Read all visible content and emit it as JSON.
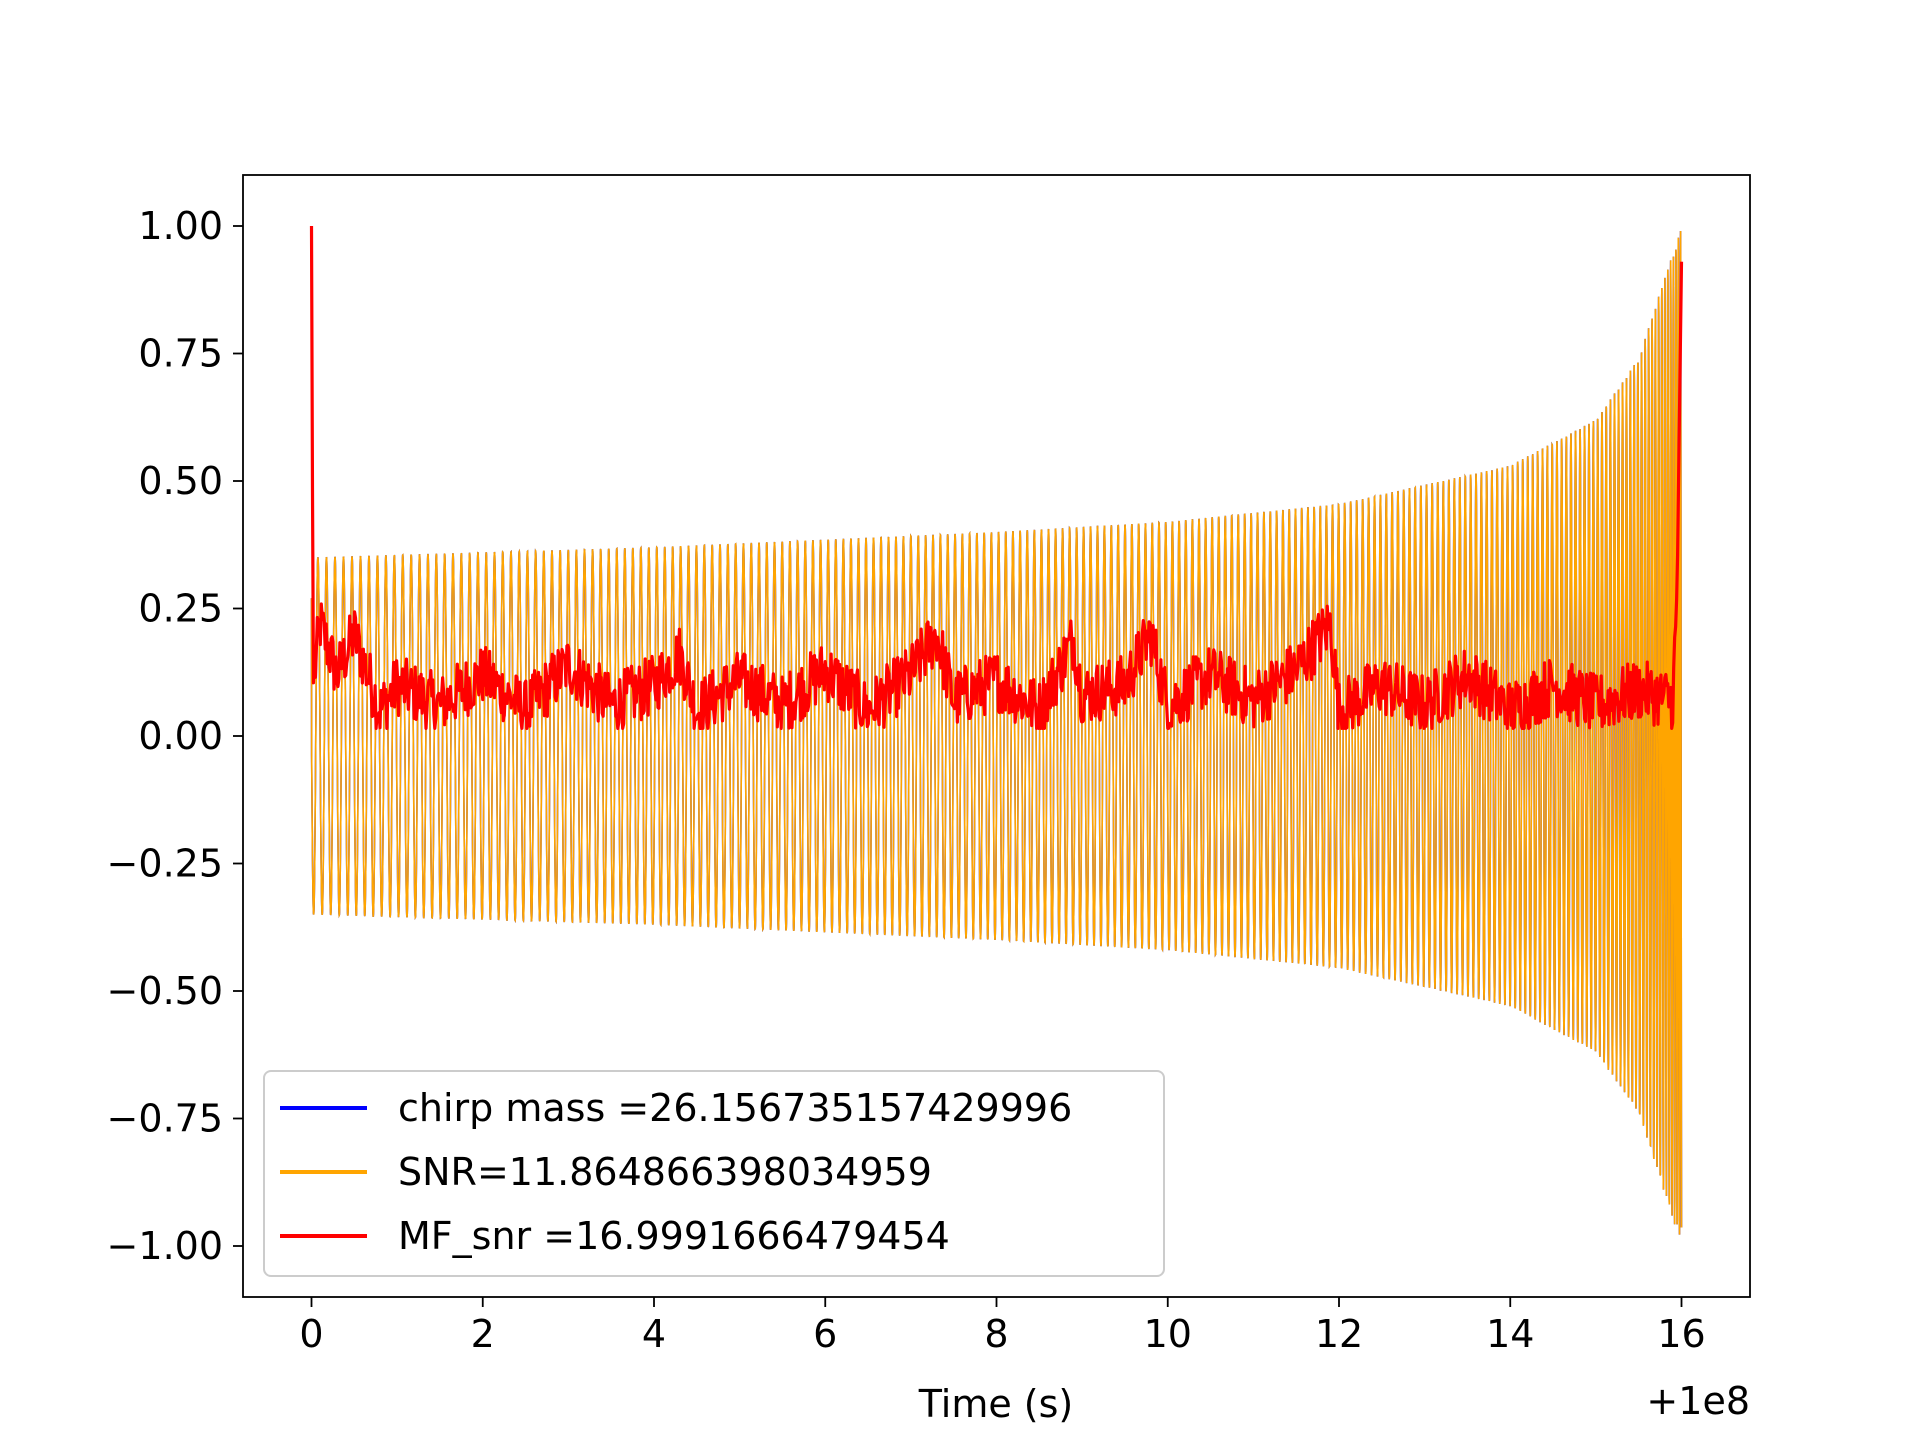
{
  "chart_data": {
    "type": "line",
    "title": "",
    "xlabel": "Time (s)",
    "ylabel": "",
    "x_offset_label": "+1e8",
    "xlim": [
      -0.8,
      16.8
    ],
    "ylim": [
      -1.1,
      1.1
    ],
    "x_ticks": [
      0,
      2,
      4,
      6,
      8,
      10,
      12,
      14,
      16
    ],
    "x_tick_labels": [
      "0",
      "2",
      "4",
      "6",
      "8",
      "10",
      "12",
      "14",
      "16"
    ],
    "y_ticks": [
      1.0,
      0.75,
      0.5,
      0.25,
      0.0,
      -0.25,
      -0.5,
      -0.75,
      -1.0
    ],
    "y_tick_labels": [
      "1.00",
      "0.75",
      "0.50",
      "0.25",
      "0.00",
      "−0.25",
      "−0.50",
      "−0.75",
      "−1.00"
    ],
    "grid": false,
    "legend_position": "lower-left",
    "series": [
      {
        "name": "chirp mass =26.156735157429996",
        "color": "#0000ff",
        "kind": "chirp-waveform",
        "x": [
          0,
          2,
          4,
          6,
          8,
          10,
          12,
          14,
          15,
          15.5,
          16
        ],
        "envelope": [
          0.35,
          0.36,
          0.37,
          0.385,
          0.4,
          0.42,
          0.455,
          0.53,
          0.62,
          0.74,
          1.0
        ]
      },
      {
        "name": "SNR=11.864866398034959",
        "color": "#ffa500",
        "kind": "chirp-waveform",
        "x": [
          0,
          2,
          4,
          6,
          8,
          10,
          12,
          14,
          15,
          15.5,
          16
        ],
        "envelope": [
          0.35,
          0.36,
          0.37,
          0.385,
          0.4,
          0.42,
          0.455,
          0.53,
          0.62,
          0.74,
          1.0
        ]
      },
      {
        "name": "MF_snr =16.9991666479454",
        "color": "#ff0000",
        "kind": "line",
        "x": [
          0.0,
          0.02,
          0.1,
          0.3,
          0.5,
          0.6,
          0.8,
          1.0,
          1.5,
          2.0,
          2.5,
          3.0,
          3.5,
          4.0,
          4.3,
          4.5,
          5.0,
          5.5,
          6.0,
          6.5,
          7.0,
          7.3,
          7.5,
          8.0,
          8.5,
          8.9,
          9.0,
          9.5,
          9.8,
          10.0,
          10.5,
          11.0,
          11.5,
          11.9,
          12.0,
          12.5,
          13.0,
          13.5,
          14.0,
          14.5,
          15.0,
          15.5,
          15.9,
          15.95,
          16.0
        ],
        "y": [
          1.0,
          0.1,
          0.22,
          0.12,
          0.2,
          0.15,
          0.05,
          0.1,
          0.06,
          0.12,
          0.05,
          0.14,
          0.06,
          0.1,
          0.16,
          0.05,
          0.11,
          0.06,
          0.13,
          0.05,
          0.12,
          0.2,
          0.07,
          0.11,
          0.05,
          0.19,
          0.08,
          0.1,
          0.2,
          0.06,
          0.12,
          0.07,
          0.13,
          0.22,
          0.05,
          0.1,
          0.06,
          0.12,
          0.05,
          0.1,
          0.06,
          0.09,
          0.07,
          0.3,
          0.93
        ]
      }
    ]
  }
}
